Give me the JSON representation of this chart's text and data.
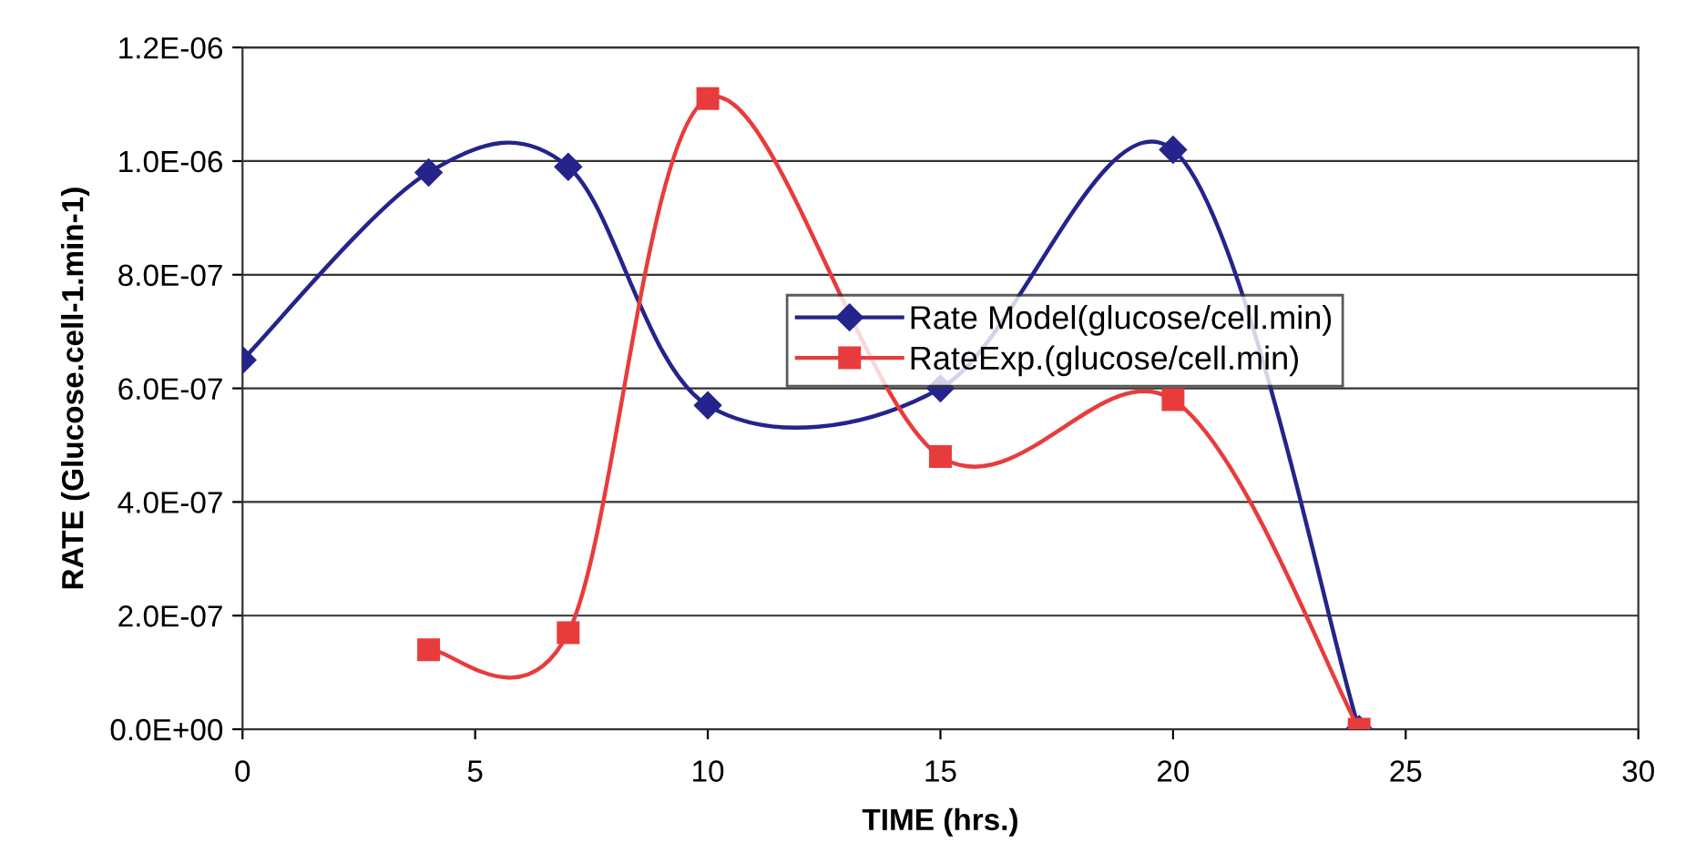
{
  "chart_data": {
    "type": "line",
    "xlabel": "TIME (hrs.)",
    "ylabel": "RATE (Glucose.cell-1.min-1)",
    "xlim": [
      0,
      30
    ],
    "xticks": [
      0,
      5,
      10,
      15,
      20,
      25,
      30
    ],
    "ylim": [
      0,
      1.2e-06
    ],
    "yticks": [
      {
        "value": 0,
        "label": "0.0E+00"
      },
      {
        "value": 2e-07,
        "label": "2.0E-07"
      },
      {
        "value": 4e-07,
        "label": "4.0E-07"
      },
      {
        "value": 6e-07,
        "label": "6.0E-07"
      },
      {
        "value": 8e-07,
        "label": "8.0E-07"
      },
      {
        "value": 1e-06,
        "label": "1.0E-06"
      },
      {
        "value": 1.2e-06,
        "label": "1.2E-06"
      }
    ],
    "grid": "y",
    "legend": "right",
    "line_style": "solid",
    "series": [
      {
        "name": "Rate Model(glucose/cell.min)",
        "color": "#24248c",
        "marker": "diamond",
        "x": [
          0,
          4,
          7,
          10,
          15,
          20,
          24
        ],
        "values": [
          6.5e-07,
          9.8e-07,
          9.9e-07,
          5.7e-07,
          6e-07,
          1.02e-06,
          0
        ]
      },
      {
        "name": "RateExp.(glucose/cell.min)",
        "color": "#e83c3c",
        "marker": "square",
        "x": [
          4,
          7,
          10,
          15,
          20,
          24
        ],
        "values": [
          1.4e-07,
          1.7e-07,
          1.11e-06,
          4.8e-07,
          5.8e-07,
          0
        ]
      }
    ]
  }
}
